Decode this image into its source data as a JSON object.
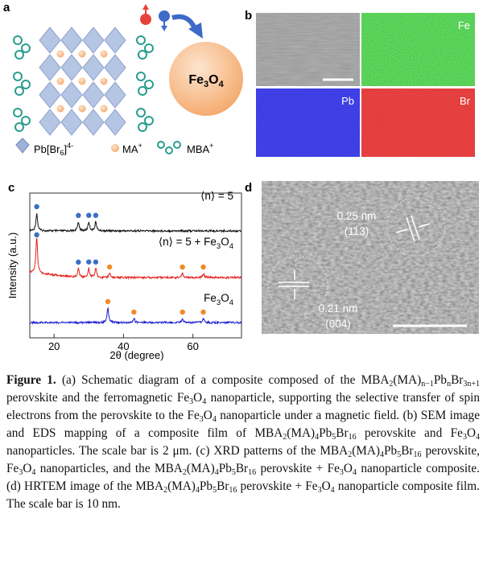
{
  "panel_a": {
    "letter": "a",
    "particle_label": [
      "Fe",
      "3",
      "O",
      "4"
    ],
    "legend": {
      "octahedron": [
        "Pb[Br",
        "6",
        "]",
        "4-"
      ],
      "ma": [
        "MA",
        "+"
      ],
      "mba": [
        "MBA",
        "+"
      ]
    }
  },
  "panel_b": {
    "letter": "b",
    "maps": [
      "Fe",
      "Pb",
      "Br"
    ]
  },
  "panel_d": {
    "letter": "d",
    "spacing_1": "0.25 nm",
    "plane_1": "(113)",
    "spacing_2": "0.21 nm",
    "plane_2": "(004)"
  },
  "chart_data": {
    "type": "line",
    "letter": "c",
    "xlabel": "2θ (degree)",
    "ylabel": "Intensity (a.u.)",
    "xlim": [
      13,
      74
    ],
    "xticks": [
      20,
      40,
      60
    ],
    "series": [
      {
        "name": [
          "⟨n⟩ = 5"
        ],
        "color": "#111111",
        "perovskite_peaks": [
          15,
          27,
          30,
          32
        ],
        "fe3o4_peaks": []
      },
      {
        "name": [
          "⟨n⟩ = 5 + Fe",
          "3",
          "O",
          "4"
        ],
        "color": "#e3211c",
        "perovskite_peaks": [
          15,
          27,
          30,
          32
        ],
        "fe3o4_peaks": [
          36,
          57,
          63
        ]
      },
      {
        "name": [
          "Fe",
          "3",
          "O",
          "4"
        ],
        "color": "#1c1ccf",
        "perovskite_peaks": [],
        "fe3o4_peaks": [
          35.5,
          43,
          57,
          63
        ]
      }
    ],
    "perovskite_marker_color": "#3b6fc4",
    "fe3o4_marker_color": "#f0892a"
  },
  "caption": {
    "parts": [
      "Figure 1.",
      " (a) Schematic diagram of a composite composed of the MBA",
      "2",
      "(MA)",
      "n−1",
      "Pb",
      "n",
      "Br",
      "3n+1",
      " perovskite and the ferromagnetic Fe",
      "3",
      "O",
      "4",
      " nanoparticle, supporting the selective transfer of spin electrons from the perovskite to the Fe",
      "3",
      "O",
      "4",
      " nanoparticle under a magnetic field. (b) SEM image and EDS mapping of a composite film of MBA",
      "2",
      "(MA)",
      "4",
      "Pb",
      "5",
      "Br",
      "16",
      " perovskite and Fe",
      "3",
      "O",
      "4",
      " nanoparticles. The scale bar is 2 μm. (c) XRD patterns of the MBA",
      "2",
      "(MA)",
      "4",
      "Pb",
      "5",
      "Br",
      "16",
      " perovskite, Fe",
      "3",
      "O",
      "4",
      " nanoparticles, and the MBA",
      "2",
      "(MA)",
      "4",
      "Pb",
      "5",
      "Br",
      "16",
      " perovskite + Fe",
      "3",
      "O",
      "4",
      " nanoparticle composite. (d) HRTEM image of the MBA",
      "2",
      "(MA)",
      "4",
      "Pb",
      "5",
      "Br",
      "16",
      " perovskite + Fe",
      "3",
      "O",
      "4",
      " nanoparticle composite film. The scale bar is 10 nm."
    ]
  }
}
